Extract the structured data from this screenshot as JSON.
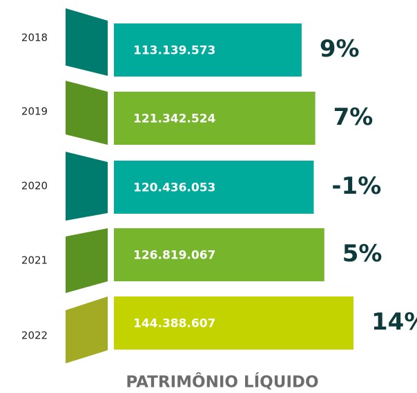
{
  "chart_data": {
    "type": "bar",
    "title": "PATRIMÔNIO LÍQUIDO",
    "categories": [
      "2018",
      "2019",
      "2020",
      "2021",
      "2022"
    ],
    "values": [
      113139573,
      121342524,
      120436053,
      126819067,
      144388607
    ],
    "value_labels": [
      "113.139.573",
      "121.342.524",
      "120.436.053",
      "126.819.067",
      "144.388.607"
    ],
    "colors": [
      "#00ab9c",
      "#77b52d",
      "#00ab9c",
      "#77b52d",
      "#c2d300"
    ],
    "growth": {
      "values": [
        9,
        7,
        -1,
        5,
        14
      ],
      "value_labels": [
        "9%",
        "7%",
        "-1%",
        "5%",
        "14%"
      ]
    }
  }
}
